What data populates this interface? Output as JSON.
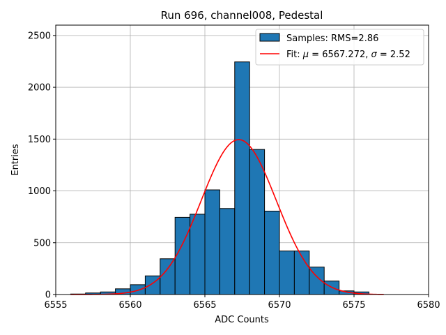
{
  "chart_data": {
    "type": "bar",
    "title": "Run 696, channel008, Pedestal",
    "xlabel": "ADC Counts",
    "ylabel": "Entries",
    "xlim": [
      6555,
      6580
    ],
    "ylim": [
      0,
      2600
    ],
    "xticks": [
      6555,
      6560,
      6565,
      6570,
      6575,
      6580
    ],
    "yticks": [
      0,
      500,
      1000,
      1500,
      2000,
      2500
    ],
    "grid": true,
    "legend_position": "top-right",
    "bins": [
      {
        "lo": 6556,
        "hi": 6557,
        "value": 5
      },
      {
        "lo": 6557,
        "hi": 6558,
        "value": 15
      },
      {
        "lo": 6558,
        "hi": 6559,
        "value": 25
      },
      {
        "lo": 6559,
        "hi": 6560,
        "value": 55
      },
      {
        "lo": 6560,
        "hi": 6561,
        "value": 95
      },
      {
        "lo": 6561,
        "hi": 6562,
        "value": 180
      },
      {
        "lo": 6562,
        "hi": 6563,
        "value": 345
      },
      {
        "lo": 6563,
        "hi": 6564,
        "value": 745
      },
      {
        "lo": 6564,
        "hi": 6565,
        "value": 775
      },
      {
        "lo": 6565,
        "hi": 6566,
        "value": 1010
      },
      {
        "lo": 6566,
        "hi": 6567,
        "value": 830
      },
      {
        "lo": 6567,
        "hi": 6568,
        "value": 2245
      },
      {
        "lo": 6568,
        "hi": 6569,
        "value": 1400
      },
      {
        "lo": 6569,
        "hi": 6570,
        "value": 805
      },
      {
        "lo": 6570,
        "hi": 6571,
        "value": 420
      },
      {
        "lo": 6571,
        "hi": 6572,
        "value": 420
      },
      {
        "lo": 6572,
        "hi": 6573,
        "value": 265
      },
      {
        "lo": 6573,
        "hi": 6574,
        "value": 130
      },
      {
        "lo": 6574,
        "hi": 6575,
        "value": 35
      },
      {
        "lo": 6575,
        "hi": 6576,
        "value": 25
      }
    ],
    "fit": {
      "mu": 6567.272,
      "sigma": 2.52,
      "amplitude": 1495,
      "x_range": [
        6556,
        6577
      ]
    },
    "series": [
      {
        "name": "Samples: RMS=2.86",
        "kind": "histogram",
        "color": "#1f77b4"
      },
      {
        "name_prefix": "Fit: ",
        "name_mu": "μ",
        "name_mid": " = 6567.272, ",
        "name_sigma": "σ",
        "name_suffix": " = 2.52",
        "kind": "line",
        "color": "#ff0000"
      }
    ]
  }
}
